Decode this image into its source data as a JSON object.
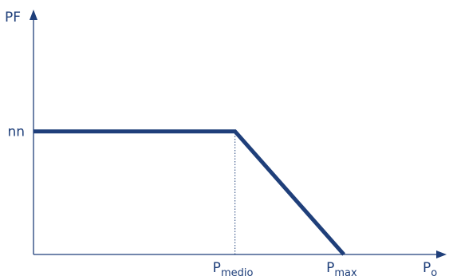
{
  "colors": {
    "axis": "#1f3f7a",
    "line": "#1f3f7a",
    "guide": "#1f3f7a",
    "text": "#1f3f7a"
  },
  "chart_data": {
    "type": "line",
    "ylabel": "PF",
    "xlabel": {
      "base": "P",
      "sub": "o"
    },
    "y_tick": {
      "label": "nn",
      "value": 1
    },
    "x_ticks": [
      {
        "base": "P",
        "sub": "medio",
        "value": 1
      },
      {
        "base": "P",
        "sub": "max",
        "value": 1.54
      }
    ],
    "series": [
      {
        "values": [
          {
            "x": 0,
            "y": 1
          },
          {
            "x": 1,
            "y": 1
          },
          {
            "x": 1.54,
            "y": 0
          }
        ]
      }
    ],
    "guides": [
      {
        "x": 1,
        "y_from": 0,
        "y_to": 1,
        "style": "dotted"
      }
    ],
    "xlim": [
      0,
      2.05
    ],
    "ylim": [
      0,
      1.99
    ],
    "grid": false
  }
}
